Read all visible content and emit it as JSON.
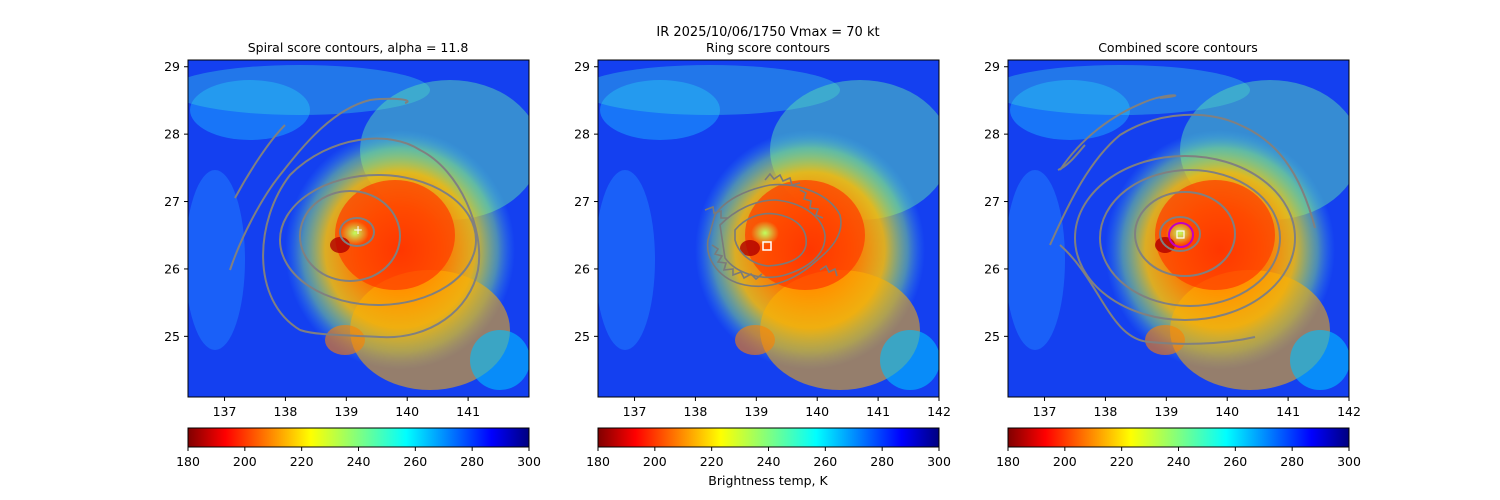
{
  "suptitle": "IR  2025/10/06/1750    Vmax = 70 kt",
  "colorbar": {
    "ticks": [
      180,
      200,
      220,
      240,
      260,
      280,
      300
    ],
    "range": [
      180,
      300
    ],
    "colormap": "jet_r",
    "label": "Brightness temp, K"
  },
  "chart_data": [
    {
      "type": "heatmap",
      "title": "Spiral score contours, alpha = 11.8",
      "xlim": [
        136.4,
        142.0
      ],
      "ylim": [
        24.1,
        29.1
      ],
      "xticks": [
        137,
        138,
        139,
        140,
        141
      ],
      "yticks": [
        25,
        26,
        27,
        28,
        29
      ],
      "contour_color": "#808080",
      "marker": {
        "shape": "plus",
        "x": 139.15,
        "y": 26.6,
        "color": "#ffffff"
      }
    },
    {
      "type": "heatmap",
      "title": "Ring score contours",
      "xlim": [
        136.4,
        142.0
      ],
      "ylim": [
        24.1,
        29.1
      ],
      "xticks": [
        137,
        138,
        139,
        140,
        141,
        142
      ],
      "yticks": [
        25,
        26,
        27,
        28,
        29
      ],
      "contour_color": "#808080",
      "marker": {
        "shape": "square",
        "x": 139.15,
        "y": 26.35,
        "color": "#ffffff"
      }
    },
    {
      "type": "heatmap",
      "title": "Combined score contours",
      "xlim": [
        136.4,
        142.0
      ],
      "ylim": [
        24.1,
        29.1
      ],
      "xticks": [
        137,
        138,
        139,
        140,
        141,
        142
      ],
      "yticks": [
        25,
        26,
        27,
        28,
        29
      ],
      "contour_color": "#808080",
      "marker": {
        "shape": "circle",
        "x": 139.2,
        "y": 26.55,
        "color": "#c000c0"
      }
    }
  ]
}
